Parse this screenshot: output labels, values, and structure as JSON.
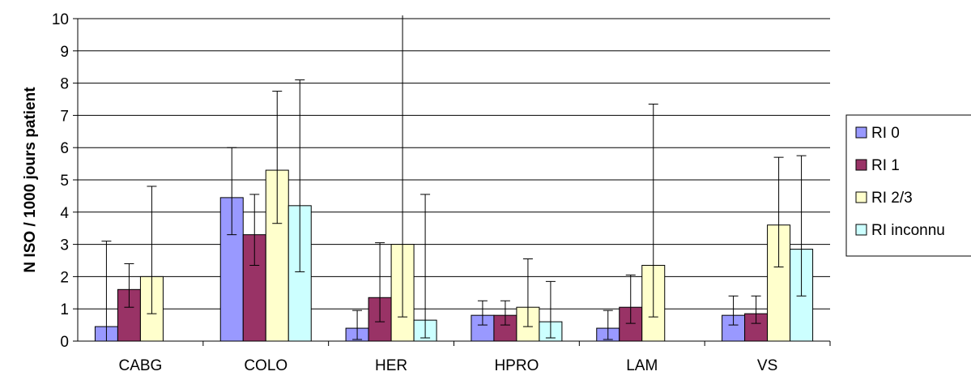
{
  "chart_data": {
    "type": "bar",
    "title": "",
    "xlabel": "",
    "ylabel": "N ISO / 1000 jours patient",
    "ylim": [
      0,
      10
    ],
    "yticks": [
      "0",
      "1",
      "2",
      "3",
      "4",
      "5",
      "6",
      "7",
      "8",
      "9",
      "10"
    ],
    "grid": true,
    "legend_position": "right",
    "categories": [
      "CABG",
      "COLO",
      "HER",
      "HPRO",
      "LAM",
      "VS"
    ],
    "series": [
      {
        "name": "RI 0",
        "color": "#9999ff",
        "values": [
          0.45,
          4.45,
          0.4,
          0.8,
          0.4,
          0.8
        ],
        "err_low": [
          0.0,
          3.3,
          0.05,
          0.5,
          0.05,
          0.5
        ],
        "err_high": [
          3.1,
          6.0,
          0.95,
          1.25,
          0.95,
          1.4
        ]
      },
      {
        "name": "RI 1",
        "color": "#993366",
        "values": [
          1.6,
          3.3,
          1.35,
          0.8,
          1.05,
          0.85
        ],
        "err_low": [
          1.05,
          2.35,
          0.6,
          0.5,
          0.55,
          0.55
        ],
        "err_high": [
          2.4,
          4.55,
          3.05,
          1.25,
          2.05,
          1.4
        ]
      },
      {
        "name": "RI 2/3",
        "color": "#ffffcc",
        "values": [
          2.0,
          5.3,
          3.0,
          1.05,
          2.35,
          3.6
        ],
        "err_low": [
          0.85,
          3.65,
          0.75,
          0.45,
          0.75,
          2.3
        ],
        "err_high": [
          4.8,
          7.75,
          10.1,
          2.55,
          7.35,
          5.7
        ]
      },
      {
        "name": "RI inconnu",
        "color": "#ccffff",
        "values": [
          0,
          4.2,
          0.65,
          0.6,
          0,
          2.85
        ],
        "err_low": [
          null,
          2.15,
          0.1,
          0.1,
          null,
          1.4
        ],
        "err_high": [
          null,
          8.1,
          4.55,
          1.85,
          null,
          5.75
        ]
      }
    ]
  }
}
